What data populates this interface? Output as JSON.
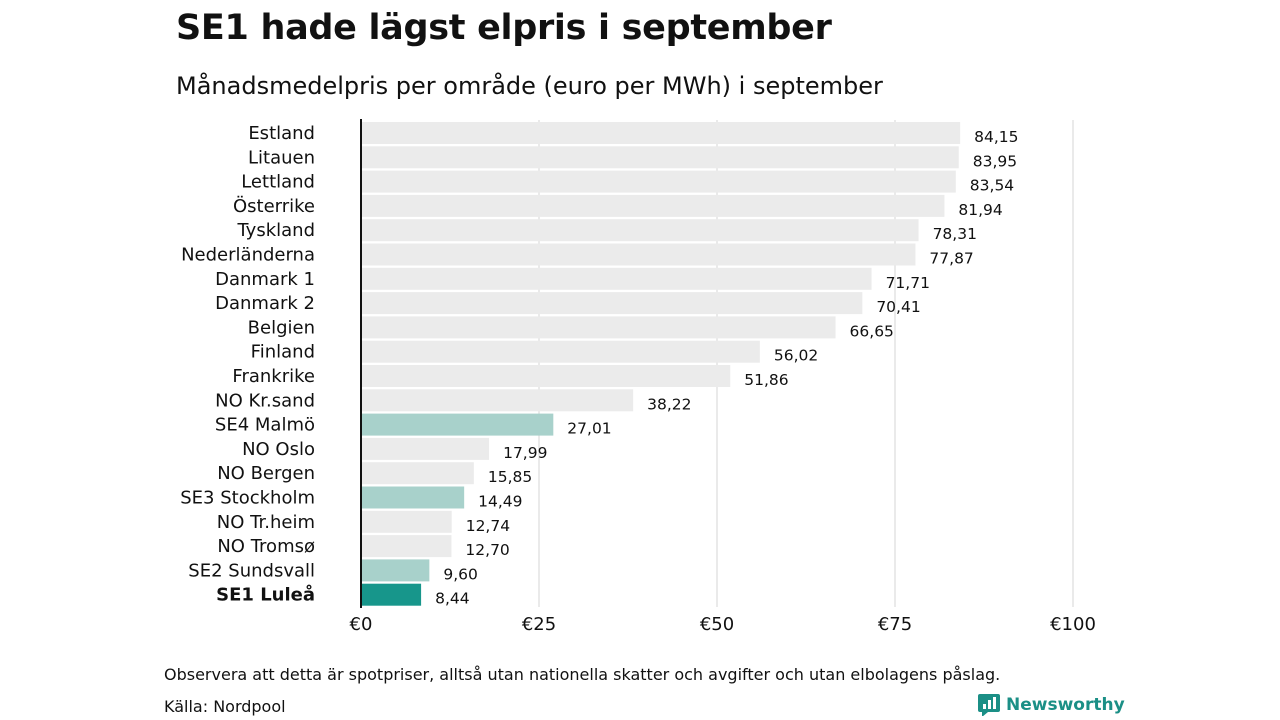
{
  "header": {
    "title": "SE1 hade lägst elpris i september",
    "subtitle": "Månadsmedelpris per område (euro per MWh) i september"
  },
  "footer": {
    "note": "Observera att detta är spotpriser, alltså utan nationella skatter och avgifter och utan elbolagens påslag.",
    "source": "Källa: Nordpool",
    "brand": "Newsworthy"
  },
  "colors": {
    "bar_default": "#ebebeb",
    "bar_se": "#a8d1cb",
    "bar_highlight": "#17968b",
    "grid": "#d4d4d4",
    "axis": "#111111",
    "brand": "#1b8f86"
  },
  "chart_data": {
    "type": "bar",
    "orientation": "horizontal",
    "title": "SE1 hade lägst elpris i september",
    "subtitle": "Månadsmedelpris per område (euro per MWh) i september",
    "xlabel": "",
    "ylabel": "",
    "xlim": [
      0,
      100
    ],
    "x_ticks": [
      0,
      25,
      50,
      75,
      100
    ],
    "x_tick_labels": [
      "€0",
      "€25",
      "€50",
      "€75",
      "€100"
    ],
    "grid": "vertical",
    "categories": [
      "Estland",
      "Litauen",
      "Lettland",
      "Österrike",
      "Tyskland",
      "Nederländerna",
      "Danmark 1",
      "Danmark 2",
      "Belgien",
      "Finland",
      "Frankrike",
      "NO Kr.sand",
      "SE4 Malmö",
      "NO Oslo",
      "NO Bergen",
      "SE3 Stockholm",
      "NO Tr.heim",
      "NO Tromsø",
      "SE2 Sundsvall",
      "SE1 Luleå"
    ],
    "values": [
      84.15,
      83.95,
      83.54,
      81.94,
      78.31,
      77.87,
      71.71,
      70.41,
      66.65,
      56.02,
      51.86,
      38.22,
      27.01,
      17.99,
      15.85,
      14.49,
      12.74,
      12.7,
      9.6,
      8.44
    ],
    "value_labels": [
      "84,15",
      "83,95",
      "83,54",
      "81,94",
      "78,31",
      "77,87",
      "71,71",
      "70,41",
      "66,65",
      "56,02",
      "51,86",
      "38,22",
      "27,01",
      "17,99",
      "15,85",
      "14,49",
      "12,74",
      "12,70",
      "9,60",
      "8,44"
    ],
    "bar_groups": [
      "other",
      "other",
      "other",
      "other",
      "other",
      "other",
      "other",
      "other",
      "other",
      "other",
      "other",
      "other",
      "se",
      "other",
      "other",
      "se",
      "other",
      "other",
      "se",
      "highlight"
    ],
    "highlighted_category": "SE1 Luleå"
  }
}
